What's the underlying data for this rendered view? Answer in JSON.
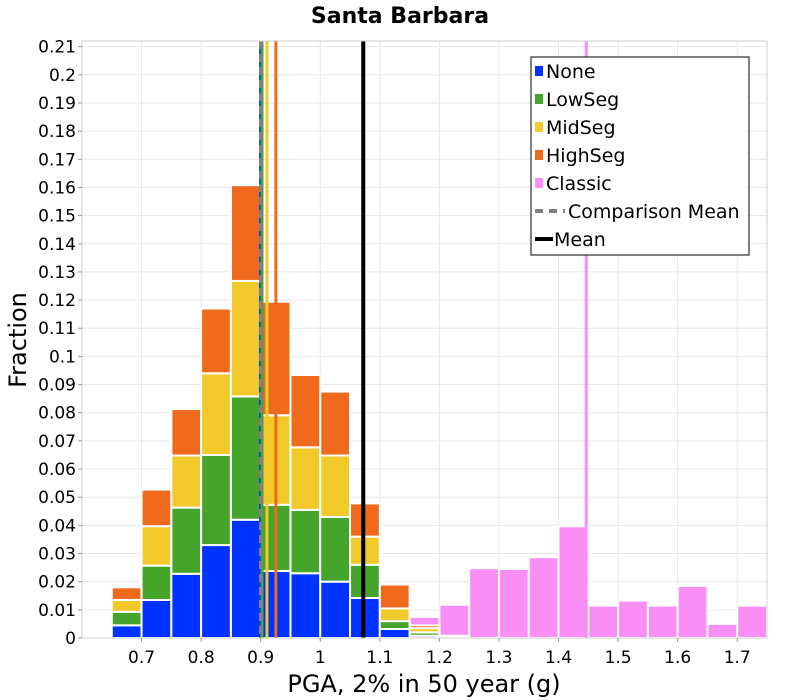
{
  "chart_data": {
    "type": "bar",
    "title": "Santa Barbara",
    "xlabel": "PGA, 2% in 50 year (g)",
    "ylabel": "Fraction",
    "xlim": [
      0.6,
      1.75
    ],
    "ylim": [
      0,
      0.212
    ],
    "x_ticks": [
      0.7,
      0.8,
      0.9,
      1.0,
      1.1,
      1.2,
      1.3,
      1.4,
      1.5,
      1.6,
      1.7
    ],
    "x_tick_labels": [
      "0.7",
      "0.8",
      "0.9",
      "1",
      "1.1",
      "1.2",
      "1.3",
      "1.4",
      "1.5",
      "1.6",
      "1.7"
    ],
    "y_ticks": [
      0,
      0.01,
      0.02,
      0.03,
      0.04,
      0.05,
      0.06,
      0.07,
      0.08,
      0.09,
      0.1,
      0.11,
      0.12,
      0.13,
      0.14,
      0.15,
      0.16,
      0.17,
      0.18,
      0.19,
      0.2,
      0.21
    ],
    "y_tick_labels": [
      "0",
      "0.01",
      "0.02",
      "0.03",
      "0.04",
      "0.05",
      "0.06",
      "0.07",
      "0.08",
      "0.09",
      "0.1",
      "0.11",
      "0.12",
      "0.13",
      "0.14",
      "0.15",
      "0.16",
      "0.17",
      "0.18",
      "0.19",
      "0.2",
      "0.21"
    ],
    "grid": true,
    "legend_position": "top-right",
    "bin_width": 0.05,
    "stacked_bins": [
      0.65,
      0.7,
      0.75,
      0.8,
      0.85,
      0.9,
      0.95,
      1.0,
      1.05,
      1.1,
      1.15,
      1.2
    ],
    "series": [
      {
        "name": "None",
        "color": "#0033ff",
        "values": [
          0.0045,
          0.0135,
          0.0228,
          0.033,
          0.042,
          0.0238,
          0.023,
          0.02,
          0.0142,
          0.0032,
          0.0008,
          0.0
        ]
      },
      {
        "name": "LowSeg",
        "color": "#44a52a",
        "values": [
          0.0048,
          0.0122,
          0.0235,
          0.032,
          0.0438,
          0.0235,
          0.0225,
          0.023,
          0.0118,
          0.0028,
          0.0012,
          0.0
        ]
      },
      {
        "name": "MidSeg",
        "color": "#f2c92a",
        "values": [
          0.0042,
          0.014,
          0.0185,
          0.029,
          0.041,
          0.0318,
          0.0222,
          0.0218,
          0.01,
          0.0045,
          0.0015,
          0.0003
        ]
      },
      {
        "name": "HighSeg",
        "color": "#f06a1e",
        "values": [
          0.0045,
          0.013,
          0.0165,
          0.023,
          0.034,
          0.0403,
          0.0257,
          0.0227,
          0.0118,
          0.0085,
          0.001,
          0.0005
        ]
      }
    ],
    "classic": {
      "name": "Classic",
      "color": "#f98ef5",
      "bins": [
        1.15,
        1.2,
        1.25,
        1.3,
        1.35,
        1.4,
        1.45,
        1.5,
        1.55,
        1.6,
        1.65,
        1.7
      ],
      "values": [
        0.0075,
        0.0118,
        0.0248,
        0.0245,
        0.0287,
        0.0397,
        0.0115,
        0.0133,
        0.0115,
        0.0185,
        0.005,
        0.0115
      ]
    },
    "vertical_lines": [
      {
        "name": "None mean",
        "x": 0.8998,
        "color": "#0033ff",
        "width": 3
      },
      {
        "name": "LowSeg mean",
        "x": 0.9022,
        "color": "#44a52a",
        "width": 3
      },
      {
        "name": "MidSeg mean",
        "x": 0.9105,
        "color": "#f2c92a",
        "width": 3
      },
      {
        "name": "HighSeg mean",
        "x": 0.9255,
        "color": "#f06a1e",
        "width": 3
      },
      {
        "name": "Classic mean",
        "x": 1.4465,
        "color": "#f98ef5",
        "width": 3
      },
      {
        "name": "Comparison Mean",
        "x": 0.9005,
        "color": "#808080",
        "width": 4,
        "dashed": true
      },
      {
        "name": "Mean",
        "x": 1.0722,
        "color": "#000000",
        "width": 4
      }
    ],
    "legend": [
      {
        "label": "None",
        "color": "#0033ff",
        "kind": "box"
      },
      {
        "label": "LowSeg",
        "color": "#44a52a",
        "kind": "box"
      },
      {
        "label": "MidSeg",
        "color": "#f2c92a",
        "kind": "box"
      },
      {
        "label": "HighSeg",
        "color": "#f06a1e",
        "kind": "box"
      },
      {
        "label": "Classic",
        "color": "#f98ef5",
        "kind": "box"
      },
      {
        "label": "Comparison Mean",
        "color": "#808080",
        "kind": "dash"
      },
      {
        "label": "Mean",
        "color": "#000000",
        "kind": "line"
      }
    ]
  }
}
